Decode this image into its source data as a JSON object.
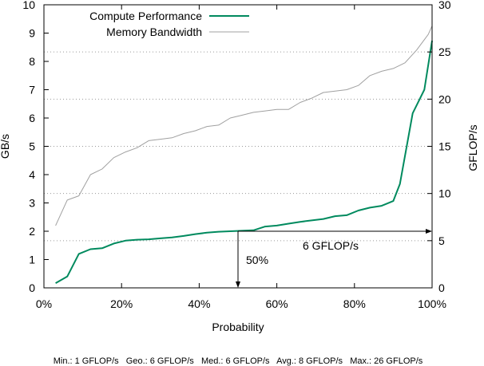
{
  "chart_data": {
    "type": "line",
    "xlabel": "Probability",
    "ylabel_left": "GB/s",
    "ylabel_right": "GFLOP/s",
    "xlim": [
      0,
      100
    ],
    "ylim_left": [
      0,
      10
    ],
    "ylim_right": [
      0,
      30
    ],
    "x_ticks": [
      "0%",
      "20%",
      "40%",
      "60%",
      "80%",
      "100%"
    ],
    "y_ticks_left": [
      "0",
      "1",
      "2",
      "3",
      "4",
      "5",
      "6",
      "7",
      "8",
      "9",
      "10"
    ],
    "y_ticks_right": [
      "0",
      "5",
      "10",
      "15",
      "20",
      "25",
      "30"
    ],
    "grid": "dotted gridlines at secondary-axis ticks",
    "legend": "top-left",
    "series": [
      {
        "name": "Compute Performance",
        "axis": "right",
        "color": "#008a5e",
        "points": [
          [
            3,
            0.5
          ],
          [
            6,
            1.2
          ],
          [
            9,
            3.6
          ],
          [
            12,
            4.1
          ],
          [
            15,
            4.2
          ],
          [
            18,
            4.7
          ],
          [
            21,
            5.0
          ],
          [
            24,
            5.1
          ],
          [
            27,
            5.15
          ],
          [
            30,
            5.25
          ],
          [
            33,
            5.35
          ],
          [
            36,
            5.5
          ],
          [
            39,
            5.7
          ],
          [
            42,
            5.85
          ],
          [
            45,
            5.95
          ],
          [
            48,
            6.0
          ],
          [
            51,
            6.05
          ],
          [
            54,
            6.1
          ],
          [
            57,
            6.5
          ],
          [
            60,
            6.6
          ],
          [
            63,
            6.8
          ],
          [
            66,
            7.0
          ],
          [
            69,
            7.15
          ],
          [
            72,
            7.3
          ],
          [
            75,
            7.6
          ],
          [
            78,
            7.7
          ],
          [
            81,
            8.2
          ],
          [
            84,
            8.5
          ],
          [
            87,
            8.7
          ],
          [
            90,
            9.2
          ],
          [
            91.7,
            11.0
          ],
          [
            95,
            18.5
          ],
          [
            98,
            21.0
          ],
          [
            100,
            26.2
          ]
        ]
      },
      {
        "name": "Memory Bandwidth",
        "axis": "left",
        "color": "#a0a0a0",
        "points": [
          [
            3,
            2.2
          ],
          [
            6,
            3.1
          ],
          [
            9,
            3.25
          ],
          [
            12,
            4.0
          ],
          [
            15,
            4.2
          ],
          [
            18,
            4.6
          ],
          [
            21,
            4.8
          ],
          [
            24,
            4.95
          ],
          [
            27,
            5.2
          ],
          [
            30,
            5.25
          ],
          [
            33,
            5.3
          ],
          [
            36,
            5.45
          ],
          [
            39,
            5.55
          ],
          [
            42,
            5.7
          ],
          [
            45,
            5.75
          ],
          [
            48,
            6.0
          ],
          [
            51,
            6.1
          ],
          [
            54,
            6.2
          ],
          [
            57,
            6.25
          ],
          [
            60,
            6.3
          ],
          [
            63,
            6.3
          ],
          [
            66,
            6.55
          ],
          [
            69,
            6.7
          ],
          [
            72,
            6.9
          ],
          [
            75,
            6.95
          ],
          [
            78,
            7.0
          ],
          [
            81,
            7.15
          ],
          [
            84,
            7.5
          ],
          [
            87,
            7.65
          ],
          [
            90,
            7.75
          ],
          [
            93,
            7.95
          ],
          [
            96,
            8.4
          ],
          [
            99,
            8.95
          ],
          [
            100,
            9.25
          ]
        ]
      }
    ],
    "annotations": {
      "horizontal_label": "6 GFLOP/s",
      "horizontal_value": 6,
      "vertical_label": "50%",
      "vertical_value": 50
    },
    "footer": "Min.: 1 GFLOP/s   Geo.: 6 GFLOP/s   Med.: 6 GFLOP/s   Avg.: 8 GFLOP/s   Max.: 26 GFLOP/s"
  }
}
